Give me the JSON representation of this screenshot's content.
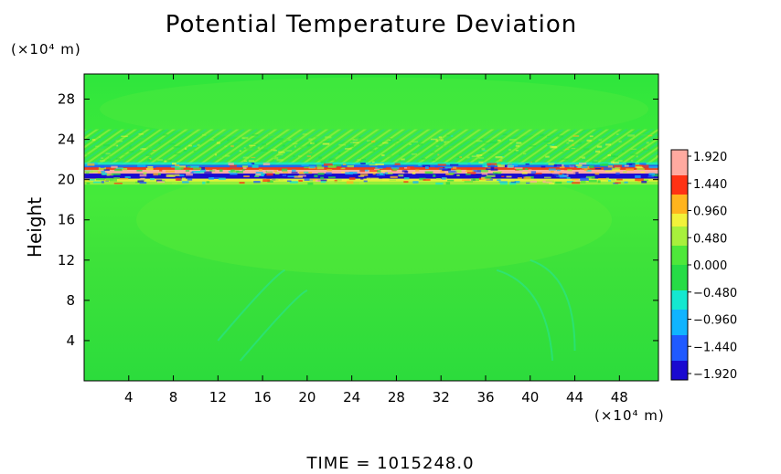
{
  "chart_data": {
    "type": "heatmap",
    "title": "Potential Temperature Deviation",
    "ylabel": "Height",
    "x_unit": "(×10⁴ m)",
    "y_unit": "(×10⁴ m)",
    "x_ticks": [
      4,
      8,
      12,
      16,
      20,
      24,
      28,
      32,
      36,
      40,
      44,
      48
    ],
    "y_ticks": [
      4,
      8,
      12,
      16,
      20,
      24,
      28
    ],
    "xlim": [
      0,
      51.5
    ],
    "ylim": [
      0,
      30.5
    ],
    "colorbar": {
      "labels": [
        "1.920",
        "1.440",
        "0.960",
        "0.480",
        "0.000",
        "−0.480",
        "−0.960",
        "−1.440",
        "−1.920"
      ],
      "range": [
        -1.92,
        1.92
      ]
    },
    "features": [
      {
        "name": "negative band",
        "y": 20.3,
        "value": -1.9
      },
      {
        "name": "positive band",
        "y": 20.9,
        "value": 1.9
      },
      {
        "name": "negative band upper",
        "y": 21.4,
        "value": -1.4
      },
      {
        "name": "wave region",
        "y_range": [
          21.5,
          25
        ],
        "value_range": [
          -0.5,
          0.6
        ]
      },
      {
        "name": "background",
        "value": 0.1
      }
    ]
  },
  "footer": {
    "time_label": "TIME  =  1015248.0"
  }
}
